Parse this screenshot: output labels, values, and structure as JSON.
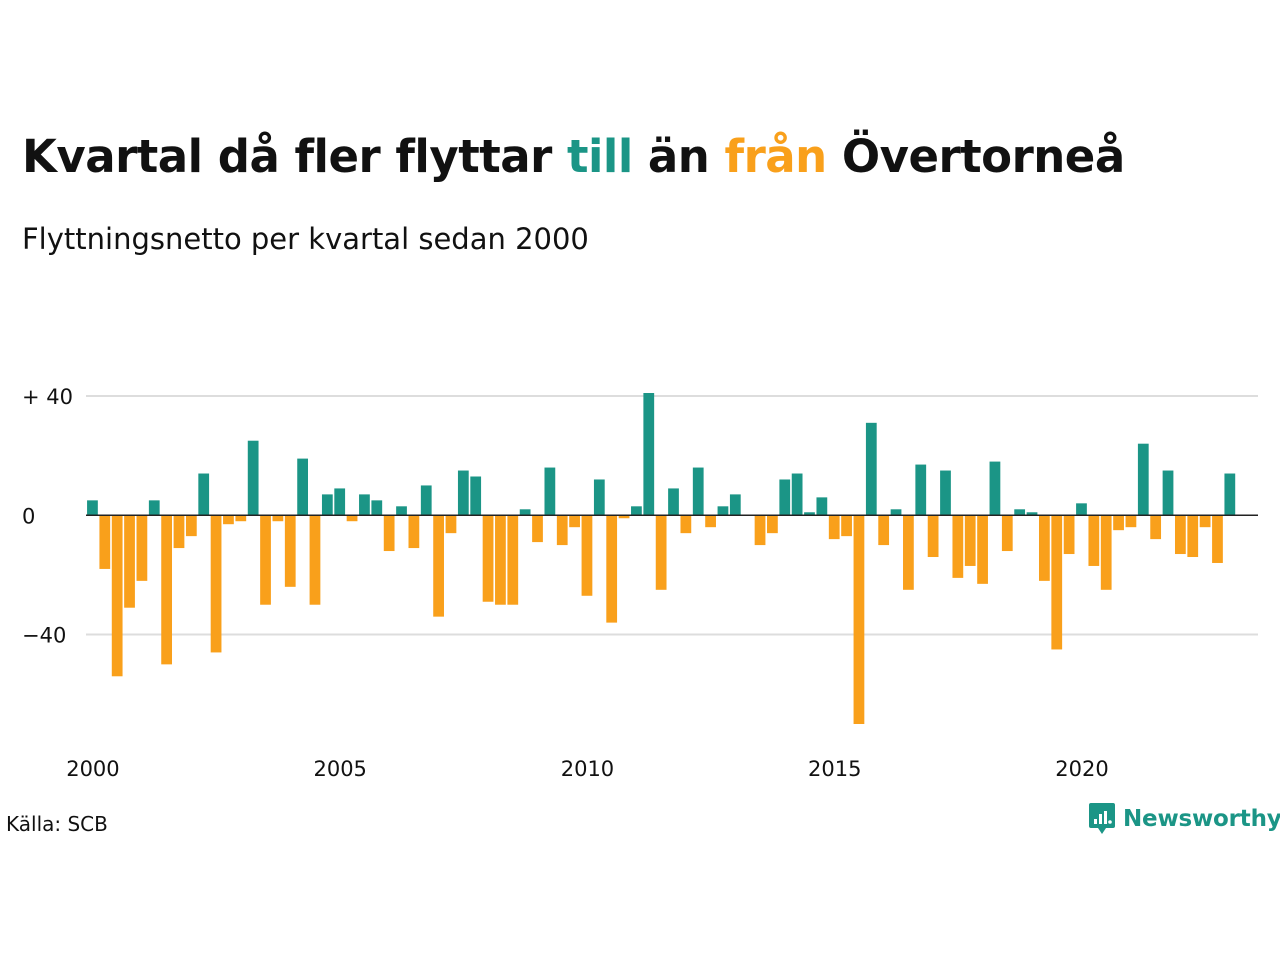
{
  "title": {
    "part1": "Kvartal då fler flyttar ",
    "till": "till",
    "part2": " än ",
    "fran": "från",
    "part3": " Övertorneå"
  },
  "subtitle": "Flyttningsnetto per kvartal sedan 2000",
  "source": "Källa: SCB",
  "brand": "Newsworthy",
  "colors": {
    "positive": "#1b9586",
    "negative": "#f9a01b",
    "grid": "#dddddd",
    "text": "#111111"
  },
  "chart_data": {
    "type": "bar",
    "title": "Kvartal då fler flyttar till än från Övertorneå",
    "subtitle": "Flyttningsnetto per kvartal sedan 2000",
    "xlabel": "",
    "ylabel": "",
    "x_start": 2000,
    "x_step": 0.25,
    "xlim": [
      1999.9,
      2023.6
    ],
    "ylim": [
      -70,
      41
    ],
    "yticks": [
      {
        "value": 40,
        "label": "+ 40"
      },
      {
        "value": 0,
        "label": "0"
      },
      {
        "value": -40,
        "label": "−40"
      }
    ],
    "xticks": [
      {
        "value": 2000,
        "label": "2000"
      },
      {
        "value": 2005,
        "label": "2005"
      },
      {
        "value": 2010,
        "label": "2010"
      },
      {
        "value": 2015,
        "label": "2015"
      },
      {
        "value": 2020,
        "label": "2020"
      }
    ],
    "grid": true,
    "values": [
      5,
      -18,
      -54,
      -31,
      -22,
      5,
      -50,
      -11,
      -7,
      14,
      -46,
      -3,
      -2,
      25,
      -30,
      -2,
      -24,
      19,
      -30,
      7,
      9,
      -2,
      7,
      5,
      -12,
      3,
      -11,
      10,
      -34,
      -6,
      15,
      13,
      -29,
      -30,
      -30,
      2,
      -9,
      16,
      -10,
      -4,
      -27,
      12,
      -36,
      -1,
      3,
      41,
      -25,
      9,
      -6,
      16,
      -4,
      3,
      7,
      0,
      -10,
      -6,
      12,
      14,
      1,
      6,
      -8,
      -7,
      -70,
      31,
      -10,
      2,
      -25,
      17,
      -14,
      15,
      -21,
      -17,
      -23,
      18,
      -12,
      2,
      1,
      -22,
      -45,
      -13,
      4,
      -17,
      -25,
      -5,
      -4,
      24,
      -8,
      15,
      -13,
      -14,
      -4,
      -16,
      14
    ]
  }
}
